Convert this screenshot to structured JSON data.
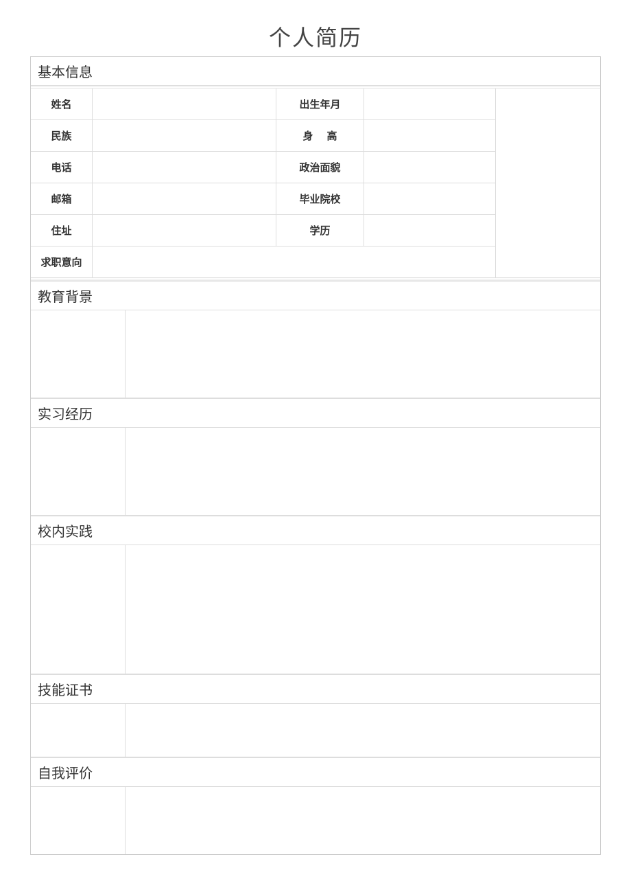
{
  "title": "个人简历",
  "colors": {
    "border": "#cccccc",
    "innerBorder": "#dddddd",
    "text": "#333333",
    "titleText": "#444444",
    "background": "#ffffff",
    "hatch": "#e8e8e8"
  },
  "typography": {
    "titleFontSize": 32,
    "sectionHeaderFontSize": 20,
    "labelFontSize": 15,
    "labelFontWeight": 700
  },
  "layout": {
    "pageWidth": 920,
    "pageHeight": 1302,
    "basicGridColumns": [
      90,
      268,
      128,
      192,
      152
    ],
    "basicRowHeight": 46,
    "twoColLeftWidth": 138,
    "sectionBodyHeights": {
      "education": 128,
      "internship": 128,
      "campus": 188,
      "skills": 78,
      "selfEvaluation": 98
    }
  },
  "sections": {
    "basic": {
      "header": "基本信息",
      "fields": {
        "name": {
          "label": "姓名",
          "value": ""
        },
        "dob": {
          "label": "出生年月",
          "value": ""
        },
        "ethnicity": {
          "label": "民族",
          "value": ""
        },
        "height": {
          "label": "身高",
          "value": ""
        },
        "phone": {
          "label": "电话",
          "value": ""
        },
        "political": {
          "label": "政治面貌",
          "value": ""
        },
        "email": {
          "label": "邮箱",
          "value": ""
        },
        "school": {
          "label": "毕业院校",
          "value": ""
        },
        "address": {
          "label": "住址",
          "value": ""
        },
        "degree": {
          "label": "学历",
          "value": ""
        },
        "intention": {
          "label": "求职意向",
          "value": ""
        }
      }
    },
    "education": {
      "header": "教育背景"
    },
    "internship": {
      "header": "实习经历"
    },
    "campus": {
      "header": "校内实践"
    },
    "skills": {
      "header": "技能证书"
    },
    "selfEvaluation": {
      "header": "自我评价"
    }
  }
}
